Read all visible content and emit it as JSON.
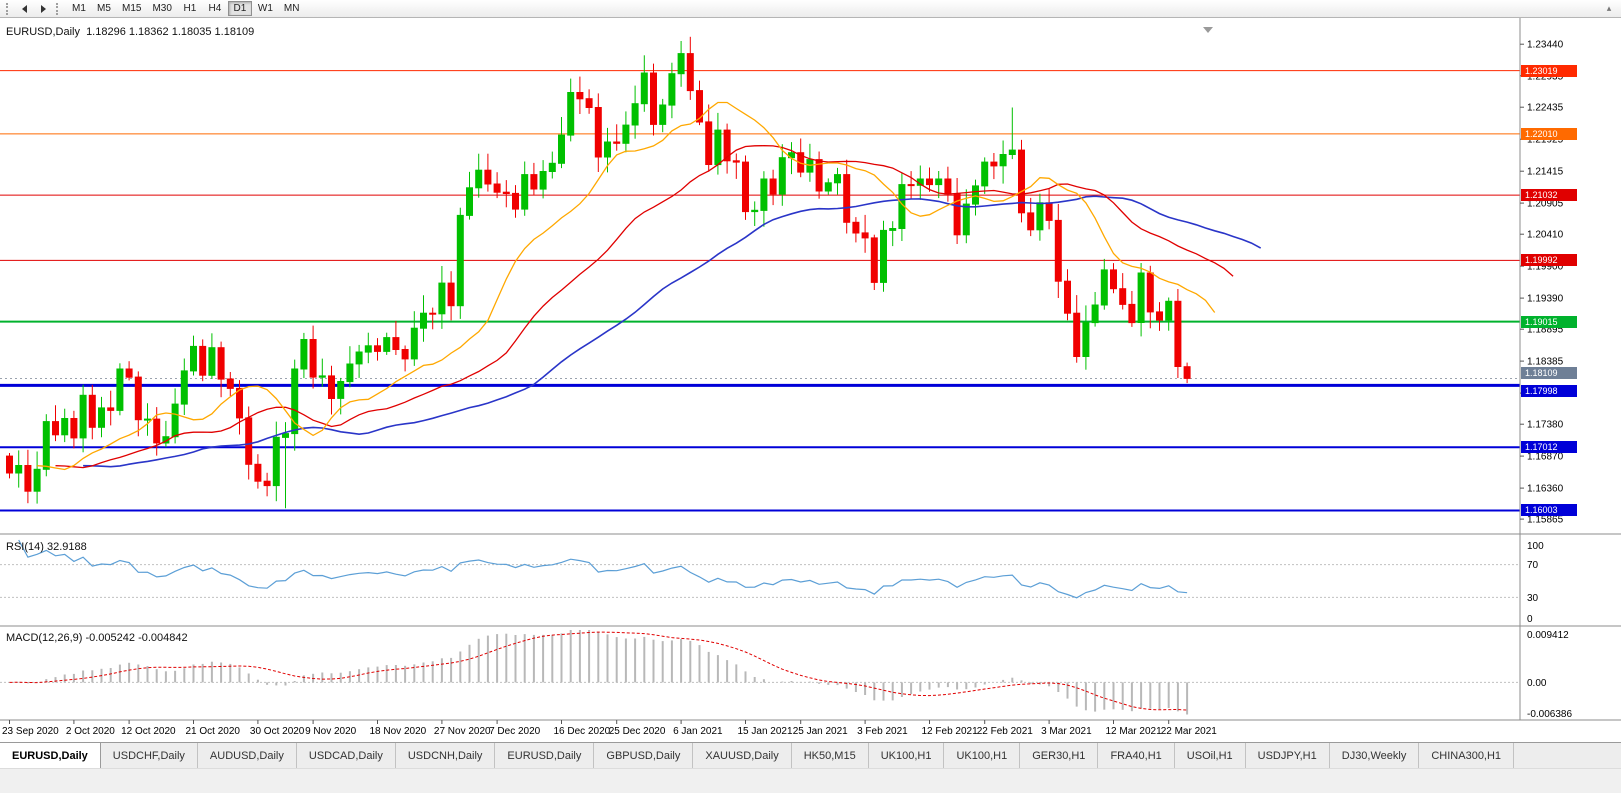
{
  "toolbar": {
    "timeframes": [
      "M1",
      "M5",
      "M15",
      "M30",
      "H1",
      "H4",
      "D1",
      "W1",
      "MN"
    ],
    "active_timeframe": "D1"
  },
  "chart": {
    "title": "EURUSD,Daily  1.18296 1.18362 1.18035 1.18109",
    "symbol": "EURUSD",
    "period": "Daily",
    "ohlc": {
      "open": "1.18296",
      "high": "1.18362",
      "low": "1.18035",
      "close": "1.18109"
    },
    "price_scale_labels": [
      "1.23440",
      "1.22935",
      "1.22435",
      "1.21925",
      "1.21415",
      "1.20905",
      "1.20410",
      "1.19900",
      "1.19390",
      "1.18895",
      "1.18385",
      "1.17875",
      "1.17380",
      "1.16870",
      "1.16360",
      "1.15865"
    ],
    "current_price": {
      "value": 1.18109,
      "label": "1.18109",
      "badge_color": "#6e7f96"
    },
    "hlines": [
      {
        "price": 1.23019,
        "label": "1.23019",
        "color": "#ff2a00",
        "width": 1
      },
      {
        "price": 1.2201,
        "label": "1.22010",
        "color": "#ff6a00",
        "width": 1
      },
      {
        "price": 1.21032,
        "label": "1.21032",
        "color": "#e00000",
        "width": 1
      },
      {
        "price": 1.19992,
        "label": "1.19992",
        "color": "#e00000",
        "width": 1
      },
      {
        "price": 1.19015,
        "label": "1.19015",
        "color": "#00b22d",
        "width": 2
      },
      {
        "price": 1.17998,
        "label": "1.17998",
        "color": "#0000d8",
        "width": 3
      },
      {
        "price": 1.17012,
        "label": "1.17012",
        "color": "#0000d8",
        "width": 2
      },
      {
        "price": 1.16003,
        "label": "1.16003",
        "color": "#0000d8",
        "width": 2
      }
    ],
    "date_labels": [
      "23 Sep 2020",
      "2 Oct 2020",
      "12 Oct 2020",
      "21 Oct 2020",
      "30 Oct 2020",
      "9 Nov 2020",
      "18 Nov 2020",
      "27 Nov 2020",
      "7 Dec 2020",
      "16 Dec 2020",
      "25 Dec 2020",
      "6 Jan 2021",
      "15 Jan 2021",
      "25 Jan 2021",
      "3 Feb 2021",
      "12 Feb 2021",
      "22 Feb 2021",
      "3 Mar 2021",
      "12 Mar 2021",
      "22 Mar 2021"
    ]
  },
  "chart_data": {
    "type": "candlestick",
    "symbol": "EURUSD",
    "timeframe": "D1",
    "bars": 129,
    "bull_color": "#00c000",
    "bear_color": "#f00000",
    "price_axis_range": [
      1.1566,
      1.2373
    ],
    "first_open": 1.1687,
    "closes": [
      1.166,
      1.1672,
      1.1631,
      1.1666,
      1.1742,
      1.1721,
      1.1747,
      1.1716,
      1.1784,
      1.1733,
      1.1764,
      1.176,
      1.1826,
      1.1813,
      1.1745,
      1.1746,
      1.1708,
      1.1718,
      1.177,
      1.1823,
      1.1862,
      1.1816,
      1.186,
      1.181,
      1.1795,
      1.1748,
      1.1674,
      1.1647,
      1.164,
      1.1717,
      1.1723,
      1.1826,
      1.1873,
      1.1813,
      1.1815,
      1.1779,
      1.1806,
      1.1834,
      1.1853,
      1.1863,
      1.1854,
      1.1876,
      1.1857,
      1.1842,
      1.1891,
      1.1915,
      1.1914,
      1.1963,
      1.1927,
      1.2071,
      1.2115,
      1.2143,
      1.2121,
      1.2108,
      1.2106,
      1.2081,
      1.2136,
      1.2113,
      1.2141,
      1.2154,
      1.2199,
      1.2267,
      1.2257,
      1.2243,
      1.2164,
      1.2188,
      1.2186,
      1.2215,
      1.2249,
      1.2298,
      1.2216,
      1.2247,
      1.2297,
      1.2329,
      1.227,
      1.222,
      1.2152,
      1.2207,
      1.2158,
      1.2156,
      1.2077,
      1.2079,
      1.2129,
      1.2105,
      1.2163,
      1.2171,
      1.214,
      1.216,
      1.211,
      1.2123,
      1.2136,
      1.206,
      1.2043,
      1.2035,
      1.1964,
      1.2047,
      1.205,
      1.212,
      1.2119,
      1.2129,
      1.212,
      1.2129,
      1.2105,
      1.204,
      1.2089,
      1.2118,
      1.2156,
      1.215,
      1.2168,
      1.2175,
      1.2075,
      1.2048,
      1.2091,
      1.2063,
      1.1966,
      1.1915,
      1.1846,
      1.19,
      1.1928,
      1.1984,
      1.1954,
      1.1929,
      1.19,
      1.1979,
      1.1917,
      1.1904,
      1.1934,
      1.183,
      1.18109
    ],
    "overrides": {
      "2": {
        "l": 1.1612
      },
      "28": {
        "l": 1.1623
      },
      "30": {
        "l": 1.1604
      },
      "73": {
        "h": 1.2349
      },
      "94": {
        "l": 1.1952
      },
      "109": {
        "h": 1.2243
      },
      "116": {
        "l": 1.1836
      },
      "128": {
        "o": 1.18296,
        "h": 1.18362,
        "l": 1.18035,
        "c": 1.18109
      }
    },
    "label_indices": [
      0,
      7,
      13,
      20,
      27,
      33,
      40,
      47,
      53,
      60,
      66,
      73,
      80,
      86,
      93,
      100,
      106,
      113,
      120,
      126
    ],
    "overlays": {
      "alligator": {
        "jaw": {
          "period": 26,
          "shift": 8,
          "color": "#2a35c8"
        },
        "teeth": {
          "period": 13,
          "shift": 5,
          "color": "#e00000"
        },
        "lips": {
          "period": 6,
          "shift": 3,
          "color": "#ffa800"
        }
      }
    }
  },
  "rsi": {
    "label": "RSI(14) 32.9188",
    "period": 14,
    "value": 32.9188,
    "levels": [
      70,
      30
    ],
    "scale_labels": [
      "100",
      "70",
      "30",
      "0"
    ],
    "color": "#5c9fd6"
  },
  "macd": {
    "label": "MACD(12,26,9) -0.005242 -0.004842",
    "main": -0.005242,
    "signal": -0.004842,
    "scale_max": 0.009412,
    "scale_min": -0.006386,
    "scale_labels": {
      "top": "0.009412",
      "zero": "0.00",
      "bottom": "-0.006386"
    },
    "histogram_color": "#b8b8b8",
    "signal_color": "#e00000"
  },
  "tabs": [
    {
      "label": "EURUSD,Daily",
      "active": true
    },
    {
      "label": "USDCHF,Daily",
      "active": false
    },
    {
      "label": "AUDUSD,Daily",
      "active": false
    },
    {
      "label": "USDCAD,Daily",
      "active": false
    },
    {
      "label": "USDCNH,Daily",
      "active": false
    },
    {
      "label": "EURUSD,Daily",
      "active": false
    },
    {
      "label": "GBPUSD,Daily",
      "active": false
    },
    {
      "label": "XAUUSD,Daily",
      "active": false
    },
    {
      "label": "HK50,M15",
      "active": false
    },
    {
      "label": "UK100,H1",
      "active": false
    },
    {
      "label": "UK100,H1",
      "active": false
    },
    {
      "label": "GER30,H1",
      "active": false
    },
    {
      "label": "FRA40,H1",
      "active": false
    },
    {
      "label": "USOil,H1",
      "active": false
    },
    {
      "label": "USDJPY,H1",
      "active": false
    },
    {
      "label": "DJ30,Weekly",
      "active": false
    },
    {
      "label": "CHINA300,H1",
      "active": false
    }
  ]
}
